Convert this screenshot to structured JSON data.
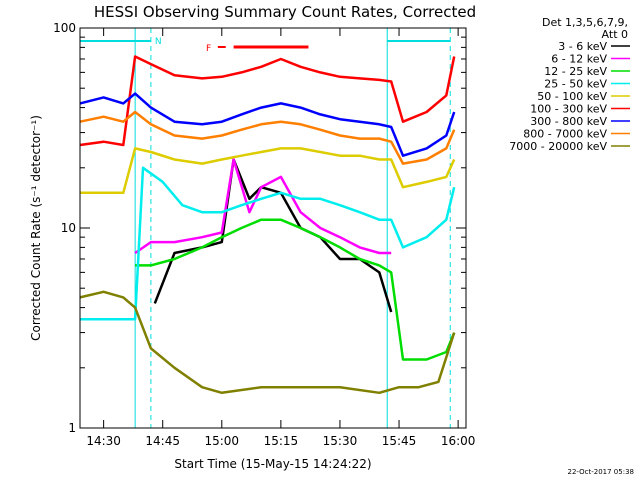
{
  "chart_data": {
    "type": "line",
    "title": "HESSI Observing Summary Count Rates, Corrected",
    "xlabel": "Start Time (15-May-15 14:24:22)",
    "ylabel": "Corrected Count Rate (s⁻¹ detector⁻¹)",
    "y_scale": "log",
    "ylim": [
      1,
      100
    ],
    "xlim": [
      "14:24",
      "16:02"
    ],
    "x_ticks": [
      "14:30",
      "14:45",
      "15:00",
      "15:15",
      "15:30",
      "15:45",
      "16:00"
    ],
    "y_ticks": [
      "1",
      "10",
      "100"
    ],
    "legend_header": [
      "Det 1,3,5,6,7,9,",
      "Att 0"
    ],
    "legend_placement": "right",
    "timestamp": "22-Oct-2017 05:38",
    "flag_labels": [
      "N",
      "F"
    ],
    "series": [
      {
        "name": "3 - 6 keV",
        "color": "#000000",
        "x": [
          "14:43",
          "14:48",
          "14:55",
          "15:00",
          "15:03",
          "15:07",
          "15:10",
          "15:15",
          "15:20",
          "15:25",
          "15:30",
          "15:35",
          "15:40",
          "15:43"
        ],
        "values": [
          4.2,
          7.5,
          8.0,
          8.5,
          22,
          14,
          16,
          15,
          10,
          9,
          7,
          7,
          6,
          3.8
        ]
      },
      {
        "name": "6 - 12 keV",
        "color": "#ff00ff",
        "x": [
          "14:38",
          "14:42",
          "14:48",
          "14:55",
          "15:00",
          "15:03",
          "15:07",
          "15:10",
          "15:15",
          "15:20",
          "15:25",
          "15:30",
          "15:35",
          "15:40",
          "15:43"
        ],
        "values": [
          7.5,
          8.5,
          8.5,
          9,
          9.5,
          22,
          12,
          16,
          18,
          12,
          10,
          9,
          8,
          7.5,
          7.5
        ]
      },
      {
        "name": "12 - 25 keV",
        "color": "#00dd00",
        "x": [
          "14:38",
          "14:42",
          "14:48",
          "14:55",
          "15:00",
          "15:05",
          "15:10",
          "15:15",
          "15:20",
          "15:25",
          "15:30",
          "15:35",
          "15:40",
          "15:43",
          "15:46",
          "15:52",
          "15:57",
          "15:59"
        ],
        "values": [
          6.5,
          6.5,
          7,
          8,
          9,
          10,
          11,
          11,
          10,
          9,
          8,
          7,
          6.5,
          6,
          2.2,
          2.2,
          2.4,
          3.0
        ]
      },
      {
        "name": "25 - 50 keV",
        "color": "#00eeee",
        "x": [
          "14:24",
          "14:38",
          "14:40",
          "14:45",
          "14:50",
          "14:55",
          "15:00",
          "15:05",
          "15:10",
          "15:15",
          "15:20",
          "15:25",
          "15:30",
          "15:35",
          "15:40",
          "15:43",
          "15:46",
          "15:52",
          "15:57",
          "15:59"
        ],
        "values": [
          3.5,
          3.5,
          20,
          17,
          13,
          12,
          12,
          13,
          14,
          15,
          14,
          14,
          13,
          12,
          11,
          11,
          8,
          9,
          11,
          16
        ]
      },
      {
        "name": "50 - 100 keV",
        "color": "#ddcc00",
        "x": [
          "14:24",
          "14:35",
          "14:38",
          "14:42",
          "14:48",
          "14:55",
          "15:00",
          "15:05",
          "15:10",
          "15:15",
          "15:20",
          "15:25",
          "15:30",
          "15:35",
          "15:40",
          "15:43",
          "15:46",
          "15:52",
          "15:57",
          "15:59"
        ],
        "values": [
          15,
          15,
          25,
          24,
          22,
          21,
          22,
          23,
          24,
          25,
          25,
          24,
          23,
          23,
          22,
          22,
          16,
          17,
          18,
          22
        ]
      },
      {
        "name": "100 - 300 keV",
        "color": "#ff0000",
        "x": [
          "14:24",
          "14:30",
          "14:35",
          "14:38",
          "14:42",
          "14:48",
          "14:55",
          "15:00",
          "15:05",
          "15:10",
          "15:15",
          "15:20",
          "15:25",
          "15:30",
          "15:35",
          "15:40",
          "15:43",
          "15:46",
          "15:52",
          "15:57",
          "15:59"
        ],
        "values": [
          26,
          27,
          26,
          72,
          66,
          58,
          56,
          57,
          60,
          64,
          70,
          64,
          60,
          57,
          56,
          55,
          54,
          34,
          38,
          46,
          72
        ]
      },
      {
        "name": "300 - 800 keV",
        "color": "#0000ff",
        "x": [
          "14:24",
          "14:30",
          "14:35",
          "14:38",
          "14:42",
          "14:48",
          "14:55",
          "15:00",
          "15:05",
          "15:10",
          "15:15",
          "15:20",
          "15:25",
          "15:30",
          "15:35",
          "15:40",
          "15:43",
          "15:46",
          "15:52",
          "15:57",
          "15:59"
        ],
        "values": [
          42,
          45,
          42,
          47,
          40,
          34,
          33,
          34,
          37,
          40,
          42,
          40,
          37,
          35,
          34,
          33,
          32,
          23,
          25,
          29,
          38
        ]
      },
      {
        "name": "800 - 7000 keV",
        "color": "#ff7f00",
        "x": [
          "14:24",
          "14:30",
          "14:35",
          "14:38",
          "14:42",
          "14:48",
          "14:55",
          "15:00",
          "15:05",
          "15:10",
          "15:15",
          "15:20",
          "15:25",
          "15:30",
          "15:35",
          "15:40",
          "15:43",
          "15:46",
          "15:52",
          "15:57",
          "15:59"
        ],
        "values": [
          34,
          36,
          34,
          38,
          33,
          29,
          28,
          29,
          31,
          33,
          34,
          33,
          31,
          29,
          28,
          28,
          27,
          21,
          22,
          25,
          31
        ]
      },
      {
        "name": "7000 - 20000 keV",
        "color": "#808000",
        "x": [
          "14:24",
          "14:30",
          "14:35",
          "14:38",
          "14:42",
          "14:48",
          "14:55",
          "15:00",
          "15:10",
          "15:20",
          "15:30",
          "15:40",
          "15:45",
          "15:50",
          "15:55",
          "15:59"
        ],
        "values": [
          4.5,
          4.8,
          4.5,
          4.0,
          2.5,
          2.0,
          1.6,
          1.5,
          1.6,
          1.6,
          1.6,
          1.5,
          1.6,
          1.6,
          1.7,
          3.0
        ]
      }
    ]
  }
}
